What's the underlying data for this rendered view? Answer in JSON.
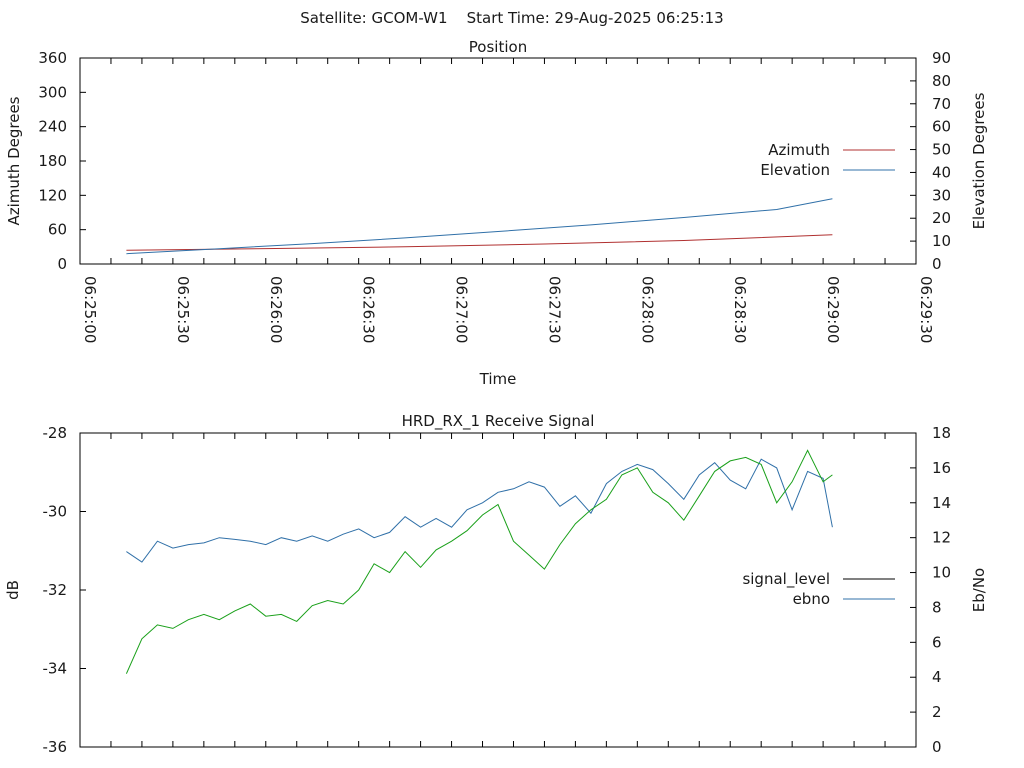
{
  "header": "Satellite: GCOM-W1    Start Time: 29-Aug-2025 06:25:13",
  "chart_data": [
    {
      "type": "line",
      "title": "Position",
      "xlabel": "Time",
      "ylabel": "Azimuth Degrees",
      "y2label": "Elevation Degrees",
      "x_ticks": [
        "06:25:00",
        "06:25:30",
        "06:26:00",
        "06:26:30",
        "06:27:00",
        "06:27:30",
        "06:28:00",
        "06:28:30",
        "06:29:00",
        "06:29:30"
      ],
      "xlim": [
        "06:25:00",
        "06:29:30"
      ],
      "ylim": [
        0,
        360
      ],
      "y_ticks": [
        0,
        60,
        120,
        180,
        240,
        300,
        360
      ],
      "y2lim": [
        0,
        90
      ],
      "y2_ticks": [
        0,
        10,
        20,
        30,
        40,
        50,
        60,
        70,
        80,
        90
      ],
      "legend_position": "right",
      "series": [
        {
          "name": "Azimuth",
          "axis": "y",
          "color": "#b03030",
          "points": [
            [
              "06:25:15",
              24
            ],
            [
              "06:26:00",
              27
            ],
            [
              "06:26:45",
              30
            ],
            [
              "06:27:30",
              35
            ],
            [
              "06:28:15",
              41
            ],
            [
              "06:29:03",
              51
            ]
          ]
        },
        {
          "name": "Elevation",
          "axis": "y2",
          "color": "#3070a8",
          "points": [
            [
              "06:25:15",
              4.5
            ],
            [
              "06:25:45",
              6.7
            ],
            [
              "06:26:15",
              8.9
            ],
            [
              "06:26:45",
              11.4
            ],
            [
              "06:27:15",
              14.2
            ],
            [
              "06:27:45",
              17.1
            ],
            [
              "06:28:15",
              20.3
            ],
            [
              "06:28:45",
              23.8
            ],
            [
              "06:29:03",
              28.5
            ]
          ]
        }
      ]
    },
    {
      "type": "line",
      "title": "HRD_RX_1 Receive Signal",
      "xlabel": "",
      "ylabel": "dB",
      "y2label": "Eb/No",
      "xlim": [
        "06:25:00",
        "06:29:30"
      ],
      "ylim": [
        -36,
        -28
      ],
      "y_ticks": [
        -36,
        -34,
        -32,
        -30,
        -28
      ],
      "y2lim": [
        0,
        18
      ],
      "y2_ticks": [
        0,
        2,
        4,
        6,
        8,
        10,
        12,
        14,
        16,
        18
      ],
      "legend_position": "right",
      "series": [
        {
          "name": "signal_level",
          "axis": "y",
          "color": "#000000",
          "points": []
        },
        {
          "name": "ebno",
          "axis": "y2",
          "color": "#3070a8",
          "points": [
            [
              "06:25:15",
              11.2
            ],
            [
              "06:25:20",
              10.6
            ],
            [
              "06:25:25",
              11.8
            ],
            [
              "06:25:30",
              11.4
            ],
            [
              "06:25:35",
              11.6
            ],
            [
              "06:25:40",
              11.7
            ],
            [
              "06:25:45",
              12.0
            ],
            [
              "06:25:50",
              11.9
            ],
            [
              "06:25:55",
              11.8
            ],
            [
              "06:26:00",
              11.6
            ],
            [
              "06:26:05",
              12.0
            ],
            [
              "06:26:10",
              11.8
            ],
            [
              "06:26:15",
              12.1
            ],
            [
              "06:26:20",
              11.8
            ],
            [
              "06:26:25",
              12.2
            ],
            [
              "06:26:30",
              12.5
            ],
            [
              "06:26:35",
              12.0
            ],
            [
              "06:26:40",
              12.3
            ],
            [
              "06:26:45",
              13.2
            ],
            [
              "06:26:50",
              12.6
            ],
            [
              "06:26:55",
              13.1
            ],
            [
              "06:27:00",
              12.6
            ],
            [
              "06:27:05",
              13.6
            ],
            [
              "06:27:10",
              14.0
            ],
            [
              "06:27:15",
              14.6
            ],
            [
              "06:27:20",
              14.8
            ],
            [
              "06:27:25",
              15.2
            ],
            [
              "06:27:30",
              14.9
            ],
            [
              "06:27:35",
              13.8
            ],
            [
              "06:27:40",
              14.4
            ],
            [
              "06:27:45",
              13.4
            ],
            [
              "06:27:50",
              15.1
            ],
            [
              "06:27:55",
              15.8
            ],
            [
              "06:28:00",
              16.2
            ],
            [
              "06:28:05",
              15.9
            ],
            [
              "06:28:10",
              15.1
            ],
            [
              "06:28:15",
              14.2
            ],
            [
              "06:28:20",
              15.6
            ],
            [
              "06:28:25",
              16.3
            ],
            [
              "06:28:30",
              15.3
            ],
            [
              "06:28:35",
              14.8
            ],
            [
              "06:28:40",
              16.5
            ],
            [
              "06:28:45",
              16.0
            ],
            [
              "06:28:50",
              13.6
            ],
            [
              "06:28:55",
              15.8
            ],
            [
              "06:29:00",
              15.4
            ],
            [
              "06:29:03",
              12.6
            ]
          ]
        },
        {
          "name": "",
          "axis": "y2",
          "color": "#1aa01a",
          "points": [
            [
              "06:25:15",
              4.2
            ],
            [
              "06:25:20",
              6.2
            ],
            [
              "06:25:25",
              7.0
            ],
            [
              "06:25:30",
              6.8
            ],
            [
              "06:25:35",
              7.3
            ],
            [
              "06:25:40",
              7.6
            ],
            [
              "06:25:45",
              7.3
            ],
            [
              "06:25:50",
              7.8
            ],
            [
              "06:25:55",
              8.2
            ],
            [
              "06:26:00",
              7.5
            ],
            [
              "06:26:05",
              7.6
            ],
            [
              "06:26:10",
              7.2
            ],
            [
              "06:26:15",
              8.1
            ],
            [
              "06:26:20",
              8.4
            ],
            [
              "06:26:25",
              8.2
            ],
            [
              "06:26:30",
              9.0
            ],
            [
              "06:26:35",
              10.5
            ],
            [
              "06:26:40",
              10.0
            ],
            [
              "06:26:45",
              11.2
            ],
            [
              "06:26:50",
              10.3
            ],
            [
              "06:26:55",
              11.3
            ],
            [
              "06:27:00",
              11.8
            ],
            [
              "06:27:05",
              12.4
            ],
            [
              "06:27:10",
              13.3
            ],
            [
              "06:27:15",
              13.9
            ],
            [
              "06:27:20",
              11.8
            ],
            [
              "06:27:25",
              11.0
            ],
            [
              "06:27:30",
              10.2
            ],
            [
              "06:27:35",
              11.6
            ],
            [
              "06:27:40",
              12.8
            ],
            [
              "06:27:45",
              13.6
            ],
            [
              "06:27:50",
              14.2
            ],
            [
              "06:27:55",
              15.6
            ],
            [
              "06:28:00",
              16.0
            ],
            [
              "06:28:05",
              14.6
            ],
            [
              "06:28:10",
              14.0
            ],
            [
              "06:28:15",
              13.0
            ],
            [
              "06:28:20",
              14.4
            ],
            [
              "06:28:25",
              15.8
            ],
            [
              "06:28:30",
              16.4
            ],
            [
              "06:28:35",
              16.6
            ],
            [
              "06:28:40",
              16.2
            ],
            [
              "06:28:45",
              14.0
            ],
            [
              "06:28:50",
              15.2
            ],
            [
              "06:28:55",
              17.0
            ],
            [
              "06:29:00",
              15.2
            ],
            [
              "06:29:03",
              15.6
            ]
          ]
        }
      ]
    }
  ]
}
